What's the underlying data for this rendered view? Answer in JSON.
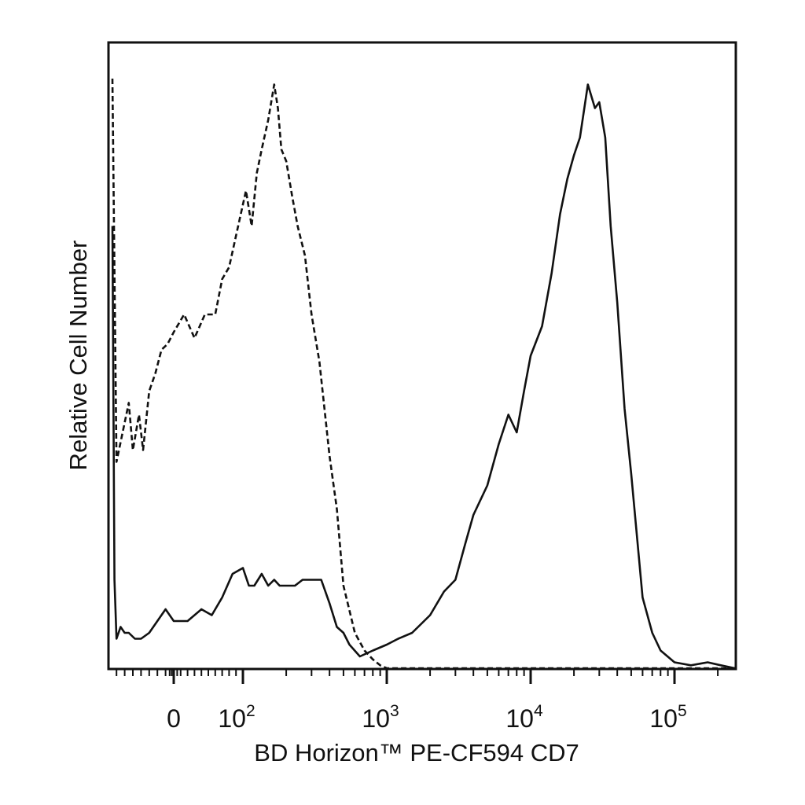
{
  "chart_data": {
    "type": "line",
    "title": "",
    "xlabel": "BD Horizon™ PE-CF594 CD7",
    "ylabel": "Relative Cell Number",
    "x_scale": "biexponential",
    "xlim": [
      -150,
      262144
    ],
    "ylim": [
      0,
      1
    ],
    "grid": false,
    "legend": "none",
    "tick_labels": [
      {
        "base": "0",
        "exp": "",
        "value": 0
      },
      {
        "base": "10",
        "exp": "2",
        "value": 100
      },
      {
        "base": "10",
        "exp": "3",
        "value": 1000
      },
      {
        "base": "10",
        "exp": "4",
        "value": 10000
      },
      {
        "base": "10",
        "exp": "5",
        "value": 100000
      }
    ],
    "series": [
      {
        "style": "dashed",
        "color": "#111111",
        "x": [
          -150,
          -140,
          -110,
          -100,
          -85,
          -75,
          -60,
          -45,
          -30,
          -15,
          0,
          15,
          30,
          45,
          60,
          70,
          80,
          95,
          105,
          115,
          125,
          135,
          150,
          165,
          175,
          185,
          200,
          220,
          240,
          270,
          300,
          340,
          400,
          450,
          500,
          600,
          700,
          800,
          900,
          1000,
          1500,
          3000,
          10000,
          100000,
          262144
        ],
        "y": [
          1.0,
          0.35,
          0.45,
          0.37,
          0.43,
          0.37,
          0.47,
          0.5,
          0.54,
          0.55,
          0.57,
          0.6,
          0.56,
          0.6,
          0.6,
          0.66,
          0.68,
          0.76,
          0.81,
          0.75,
          0.84,
          0.88,
          0.93,
          0.99,
          0.95,
          0.88,
          0.86,
          0.8,
          0.75,
          0.7,
          0.6,
          0.52,
          0.36,
          0.27,
          0.14,
          0.06,
          0.03,
          0.015,
          0.005,
          0.0,
          0.0,
          0.0,
          0.0,
          0.0,
          0.0
        ]
      },
      {
        "style": "solid",
        "color": "#111111",
        "x": [
          -150,
          -145,
          -140,
          -130,
          -120,
          -110,
          -95,
          -80,
          -60,
          -40,
          -20,
          0,
          20,
          40,
          55,
          70,
          85,
          100,
          110,
          120,
          135,
          150,
          165,
          180,
          200,
          230,
          260,
          300,
          350,
          400,
          450,
          500,
          550,
          650,
          800,
          1000,
          1200,
          1500,
          2000,
          2500,
          3000,
          3500,
          4000,
          5000,
          6000,
          7000,
          8000,
          9000,
          10000,
          12000,
          14000,
          16000,
          18000,
          20000,
          22000,
          25000,
          28000,
          30000,
          33000,
          36000,
          40000,
          45000,
          50000,
          60000,
          70000,
          80000,
          100000,
          130000,
          170000,
          210000,
          262144
        ],
        "y": [
          0.75,
          0.15,
          0.05,
          0.07,
          0.06,
          0.06,
          0.05,
          0.05,
          0.06,
          0.08,
          0.1,
          0.08,
          0.08,
          0.1,
          0.09,
          0.12,
          0.16,
          0.17,
          0.14,
          0.14,
          0.16,
          0.14,
          0.15,
          0.14,
          0.14,
          0.14,
          0.15,
          0.15,
          0.15,
          0.11,
          0.07,
          0.06,
          0.04,
          0.02,
          0.03,
          0.04,
          0.05,
          0.06,
          0.09,
          0.13,
          0.15,
          0.21,
          0.26,
          0.31,
          0.38,
          0.43,
          0.4,
          0.47,
          0.53,
          0.58,
          0.67,
          0.77,
          0.83,
          0.87,
          0.9,
          0.99,
          0.95,
          0.96,
          0.9,
          0.75,
          0.62,
          0.44,
          0.33,
          0.12,
          0.06,
          0.03,
          0.01,
          0.005,
          0.01,
          0.005,
          0.0
        ]
      }
    ]
  }
}
